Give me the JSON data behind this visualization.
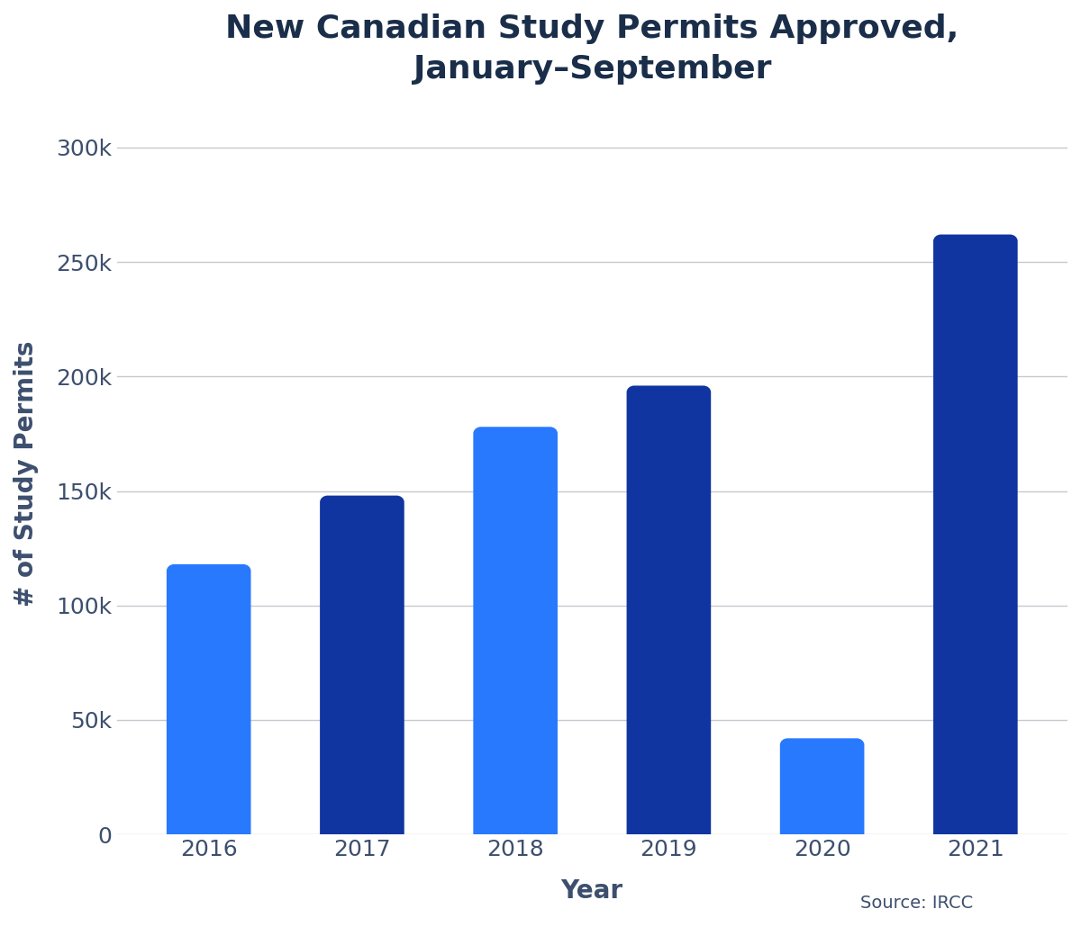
{
  "years": [
    "2016",
    "2017",
    "2018",
    "2019",
    "2020",
    "2021"
  ],
  "values": [
    118000,
    148000,
    178000,
    196000,
    42000,
    262000
  ],
  "bar_colors": [
    "#2979FF",
    "#1035A0",
    "#2979FF",
    "#1035A0",
    "#2979FF",
    "#1035A0"
  ],
  "title_line1": "New Canadian Study Permits Approved,",
  "title_line2": "January–September",
  "xlabel": "Year",
  "ylabel": "# of Study Permits",
  "yticks": [
    0,
    50000,
    100000,
    150000,
    200000,
    250000,
    300000
  ],
  "ytick_labels": [
    "0",
    "50k",
    "100k",
    "150k",
    "200k",
    "250k",
    "300k"
  ],
  "ylim": [
    0,
    315000
  ],
  "source_text": "Source: IRCC",
  "background_color": "#FFFFFF",
  "grid_color": "#C8C8D0",
  "title_color": "#1a2e4a",
  "axis_label_color": "#3d4f6e",
  "tick_label_color": "#3d4f6e",
  "title_fontsize": 26,
  "axis_label_fontsize": 20,
  "tick_fontsize": 18,
  "source_fontsize": 14,
  "bar_width": 0.55
}
